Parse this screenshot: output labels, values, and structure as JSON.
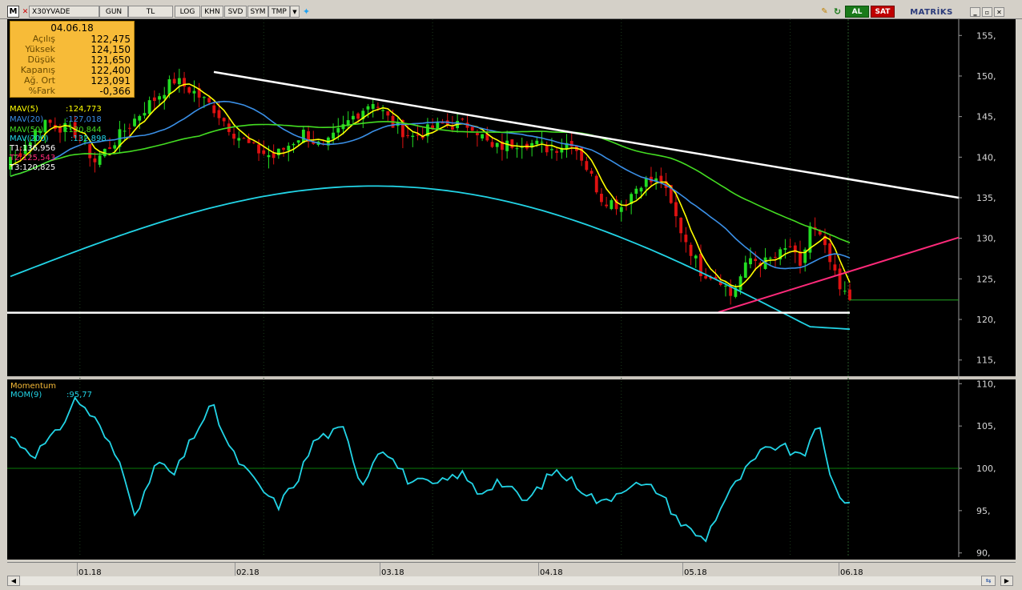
{
  "toolbar": {
    "symbol": "X30YVADE",
    "buttons": [
      "GUN",
      "TL",
      "LOG",
      "KHN",
      "SVD",
      "SYM",
      "TMP"
    ],
    "buy_label": "AL",
    "sell_label": "SAT",
    "brand": "MATRİKS"
  },
  "info_box": {
    "date": "04.06.18",
    "rows": [
      {
        "label": "Açılış",
        "value": "122,475"
      },
      {
        "label": "Yüksek",
        "value": "124,150"
      },
      {
        "label": "Düşük",
        "value": "121,650"
      },
      {
        "label": "Kapanış",
        "value": "122,400"
      },
      {
        "label": "Ağ. Ort",
        "value": "123,091"
      },
      {
        "label": "%Fark",
        "value": "-0,366"
      }
    ]
  },
  "legend": [
    {
      "name": "MAV(5)",
      "value": ":124,773",
      "color": "#ffff00"
    },
    {
      "name": "MAV(20)",
      "value": ":127,018",
      "color": "#3a8fe6"
    },
    {
      "name": "MAV(50)",
      "value": ":130,844",
      "color": "#44dd22"
    },
    {
      "name": "MAV(200)",
      "value": ":132,898",
      "color": "#22d4e6"
    },
    {
      "name": "T1",
      "value": ":136,956",
      "color": "#ffffff"
    },
    {
      "name": "T2",
      "value": ":125,543",
      "color": "#ff2a7a"
    },
    {
      "name": "T3",
      "value": ":120,825",
      "color": "#ffffff"
    }
  ],
  "momentum_legend": {
    "title": "Momentum",
    "name": "MOM(9)",
    "value": ":95,77"
  },
  "colors": {
    "up": "#22dd22",
    "down": "#dd1111",
    "mav5": "#ffff00",
    "mav20": "#3a8fe6",
    "mav50": "#44dd22",
    "mav200": "#22d4e6",
    "t1": "#ffffff",
    "t2": "#ff2a7a",
    "t3": "#ffffff",
    "momentum": "#22d4e6",
    "reference": "#0a7a0a"
  },
  "chart_data": [
    {
      "type": "candlestick",
      "ylim": [
        113,
        157
      ],
      "y_ticks": [
        115,
        120,
        125,
        130,
        135,
        140,
        145,
        150,
        155
      ],
      "x_labels": [
        "01.18",
        "02.18",
        "03.18",
        "04.18",
        "05.18",
        "06.18"
      ],
      "last_close": 122.4,
      "trendlines": [
        {
          "name": "T1",
          "from": {
            "date": "02.18",
            "value": 150.5
          },
          "to": {
            "date": "06.18",
            "value": 136.956
          }
        },
        {
          "name": "T2",
          "from": {
            "date": "05.18",
            "value": 121.0
          },
          "to": {
            "date": "06.18",
            "value": 125.543
          }
        },
        {
          "name": "T3",
          "from": {
            "date": "01.18",
            "value": 120.825
          },
          "to": {
            "date": "06.18",
            "value": 120.825
          }
        }
      ],
      "series": [
        {
          "name": "MAV(5)",
          "last": 124.773
        },
        {
          "name": "MAV(20)",
          "last": 127.018
        },
        {
          "name": "MAV(50)",
          "last": 130.844
        },
        {
          "name": "MAV(200)",
          "last": 132.898
        }
      ]
    },
    {
      "type": "line",
      "name": "MOM(9)",
      "ylim": [
        89.5,
        110.5
      ],
      "y_ticks": [
        90,
        95,
        100,
        105,
        110
      ],
      "reference_line": 100,
      "last": 95.77
    }
  ]
}
